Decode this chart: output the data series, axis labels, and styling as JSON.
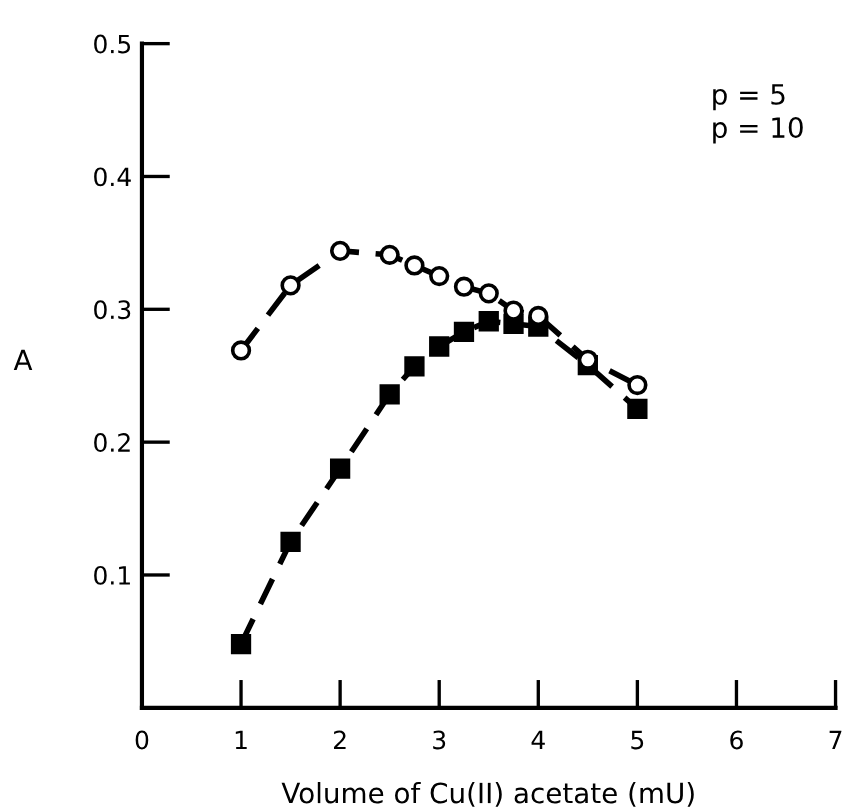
{
  "chart_data": {
    "type": "line",
    "xlabel": "Volume of Cu(II) acetate (mU)",
    "ylabel": "A",
    "xlim": [
      0,
      7
    ],
    "ylim": [
      0,
      0.5
    ],
    "xticks": [
      0,
      1,
      2,
      3,
      4,
      5,
      6,
      7
    ],
    "yticks": [
      {
        "value": 0,
        "label": null
      },
      0.1,
      0.2,
      0.3,
      0.4,
      0.5
    ],
    "line_style": "dashed",
    "grid": false,
    "annotations": [
      "p = 5",
      "p = 10"
    ],
    "series": [
      {
        "color": "#000000",
        "marker": "circle",
        "x": [
          1,
          1.5,
          2,
          2.5,
          2.75,
          3,
          3.25,
          3.5,
          3.75,
          4,
          4.5,
          5
        ],
        "values": [
          0.269,
          0.318,
          0.344,
          0.341,
          0.333,
          0.325,
          0.317,
          0.312,
          0.299,
          0.295,
          0.262,
          0.243
        ]
      },
      {
        "color": "#000000",
        "marker": "square",
        "x": [
          1,
          1.5,
          2,
          2.5,
          2.75,
          3,
          3.25,
          3.5,
          3.75,
          4,
          4.5,
          5
        ],
        "values": [
          0.048,
          0.125,
          0.18,
          0.236,
          0.257,
          0.272,
          0.283,
          0.291,
          0.289,
          0.287,
          0.258,
          0.225
        ]
      }
    ]
  }
}
